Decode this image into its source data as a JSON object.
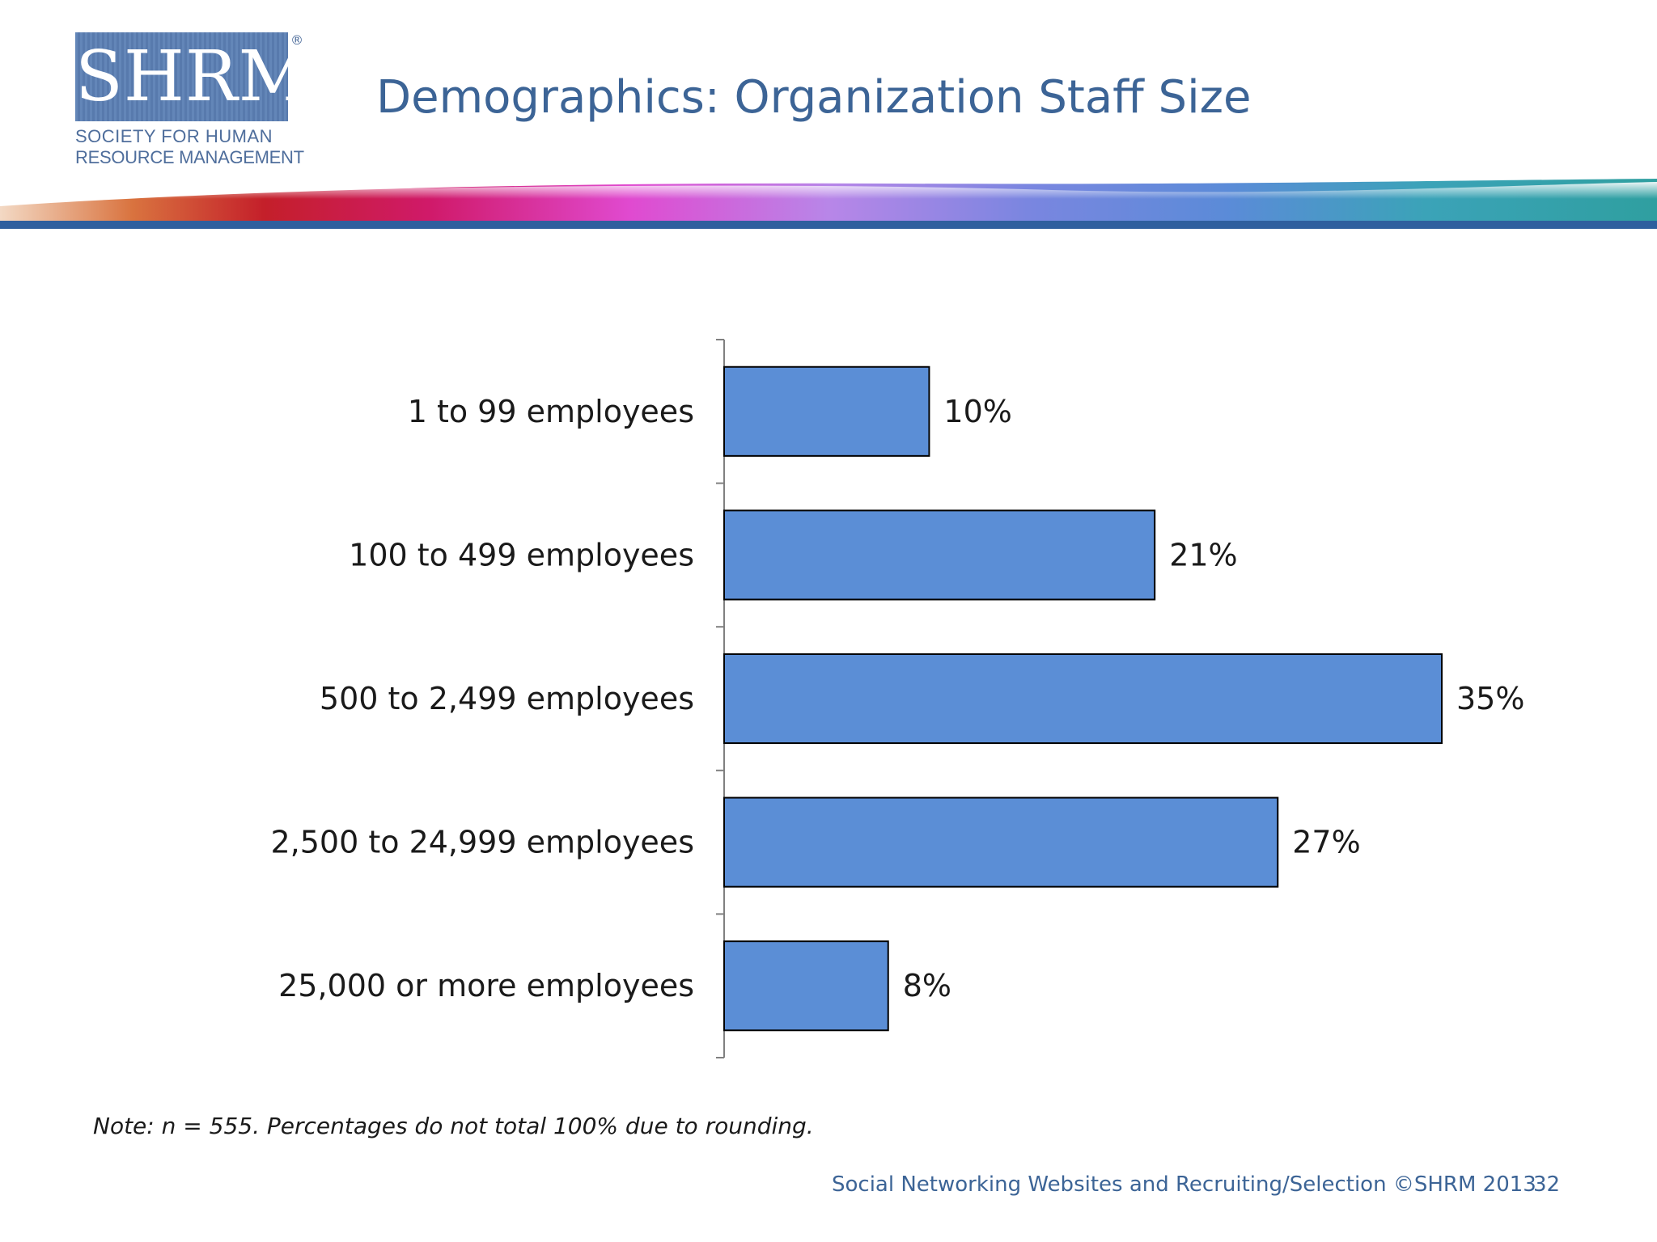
{
  "logo": {
    "letters": "SHRM",
    "reg_mark": "®",
    "line1": "SOCIETY FOR HUMAN",
    "line2": "RESOURCE MANAGEMENT",
    "color": "#5b7fb4"
  },
  "title": "Demographics: Organization Staff Size",
  "chart_data": {
    "type": "bar",
    "orientation": "horizontal",
    "categories": [
      "1 to 99 employees",
      "100 to 499 employees",
      "500 to 2,499 employees",
      "2,500 to 24,999 employees",
      "25,000 or more employees"
    ],
    "values": [
      10,
      21,
      35,
      27,
      8
    ],
    "value_labels": [
      "10%",
      "21%",
      "35%",
      "27%",
      "8%"
    ],
    "unit": "%",
    "xlim": [
      0,
      35
    ],
    "grid": false,
    "legend": "none",
    "bar_color": "#5b8ed6",
    "bar_edge_color": "#000000"
  },
  "note": "Note: n = 555. Percentages do not total 100% due to rounding.",
  "footer": {
    "text": "Social Networking Websites and Recruiting/Selection ©SHRM 2013",
    "page_number": "32"
  }
}
